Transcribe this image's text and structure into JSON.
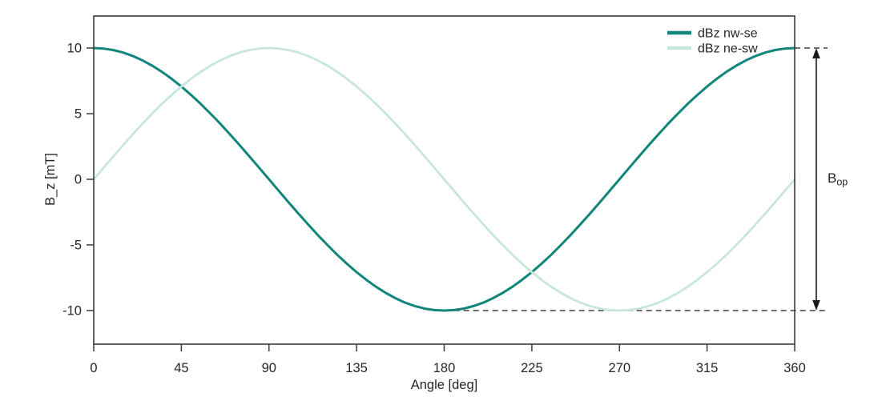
{
  "figure": {
    "background": "#ffffff"
  },
  "chart_data": {
    "type": "line",
    "title": "",
    "xlabel": "Angle [deg]",
    "ylabel": "B_z [mT]",
    "xlim": [
      0,
      360
    ],
    "ylim": [
      -12.56,
      12.44
    ],
    "x_ticks": [
      0,
      45,
      90,
      135,
      180,
      225,
      270,
      315,
      360
    ],
    "y_ticks": [
      -10,
      -5,
      0,
      5,
      10
    ],
    "grid": false,
    "legend_position": "top-right-inside",
    "colors": {
      "ink": "#1a1a1a",
      "spine": "#3a3a3a",
      "text": "#262626",
      "background": "#ffffff"
    },
    "x": [
      0,
      5,
      10,
      15,
      20,
      25,
      30,
      35,
      40,
      45,
      50,
      55,
      60,
      65,
      70,
      75,
      80,
      85,
      90,
      95,
      100,
      105,
      110,
      115,
      120,
      125,
      130,
      135,
      140,
      145,
      150,
      155,
      160,
      165,
      170,
      175,
      180,
      185,
      190,
      195,
      200,
      205,
      210,
      215,
      220,
      225,
      230,
      235,
      240,
      245,
      250,
      255,
      260,
      265,
      270,
      275,
      280,
      285,
      290,
      295,
      300,
      305,
      310,
      315,
      320,
      325,
      330,
      335,
      340,
      345,
      350,
      355,
      360
    ],
    "series": [
      {
        "id": "dbz-nw-se",
        "name": "dBz nw-se",
        "color": "#108579",
        "width": 3,
        "values": [
          10,
          9.96,
          9.85,
          9.66,
          9.4,
          9.06,
          8.66,
          8.19,
          7.66,
          7.07,
          6.43,
          5.74,
          5,
          4.23,
          3.42,
          2.59,
          1.74,
          0.87,
          0,
          -0.87,
          -1.74,
          -2.59,
          -3.42,
          -4.23,
          -5,
          -5.74,
          -6.43,
          -7.07,
          -7.66,
          -8.19,
          -8.66,
          -9.06,
          -9.4,
          -9.66,
          -9.85,
          -9.96,
          -10,
          -9.96,
          -9.85,
          -9.66,
          -9.4,
          -9.06,
          -8.66,
          -8.19,
          -7.66,
          -7.07,
          -6.43,
          -5.74,
          -5,
          -4.23,
          -3.42,
          -2.59,
          -1.74,
          -0.87,
          0,
          0.87,
          1.74,
          2.59,
          3.42,
          4.23,
          5,
          5.74,
          6.43,
          7.07,
          7.66,
          8.19,
          8.66,
          9.06,
          9.4,
          9.66,
          9.85,
          9.96,
          10
        ]
      },
      {
        "id": "dbz-ne-sw",
        "name": "dBz ne-sw",
        "color": "#c9e5e0",
        "width": 2.8,
        "values": [
          0,
          0.87,
          1.74,
          2.59,
          3.42,
          4.23,
          5,
          5.74,
          6.43,
          7.07,
          7.66,
          8.19,
          8.66,
          9.06,
          9.4,
          9.66,
          9.85,
          9.96,
          10,
          9.96,
          9.85,
          9.66,
          9.4,
          9.06,
          8.66,
          8.19,
          7.66,
          7.07,
          6.43,
          5.74,
          5,
          4.23,
          3.42,
          2.59,
          1.74,
          0.87,
          0,
          -0.87,
          -1.74,
          -2.59,
          -3.42,
          -4.23,
          -5,
          -5.74,
          -6.43,
          -7.07,
          -7.66,
          -8.19,
          -8.66,
          -9.06,
          -9.4,
          -9.66,
          -9.85,
          -9.96,
          -10,
          -9.96,
          -9.85,
          -9.66,
          -9.4,
          -9.06,
          -8.66,
          -8.19,
          -7.66,
          -7.07,
          -6.43,
          -5.74,
          -5,
          -4.23,
          -3.42,
          -2.59,
          -1.74,
          -0.87,
          0
        ],
        "legend_label": "dBz ne-sw"
      }
    ],
    "guides": [
      {
        "y": 10,
        "x_start_deg": 360
      },
      {
        "y": -10,
        "x_start_deg": 185
      }
    ],
    "annotation": {
      "label_main": "B",
      "label_sub": "op",
      "y_top": 10,
      "y_bottom": -10
    }
  }
}
